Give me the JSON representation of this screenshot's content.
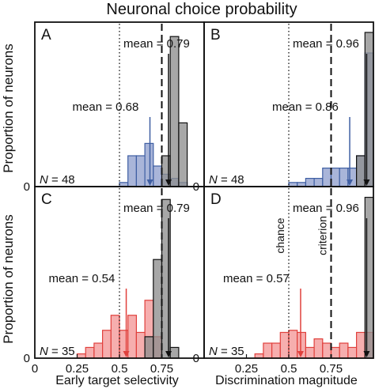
{
  "figure": {
    "title": "Neuronal choice probability",
    "ylabel": "Proportion of neurons",
    "xlabel_left": "Early target selectivity",
    "xlabel_right": "Discrimination magnitude"
  },
  "colors": {
    "blue": "#3f5fa3",
    "blue_fill": "#9aa8d2",
    "red": "#e0403c",
    "red_fill": "#f4a0a0",
    "gray_fill": "#8e8e8e",
    "dark_fill": "#3d4354"
  },
  "chart_data": [
    {
      "panel": "A",
      "type": "bar",
      "xlim": [
        0,
        1
      ],
      "ylim": [
        0,
        0.8
      ],
      "xticks": [],
      "yticks": [
        0
      ],
      "bin_width": 0.05,
      "n_label": "N = 48",
      "ref_lines": {
        "chance": 0.5,
        "criterion": 0.75
      },
      "series": [
        {
          "bin_starts": [
            0.5,
            0.55,
            0.6,
            0.65,
            0.7,
            0.75,
            0.8,
            0.85
          ],
          "values": [
            0.02,
            0.15,
            0.15,
            0.21,
            0.1,
            0.06,
            0.04,
            0.02
          ],
          "mean": 0.68,
          "mean_label": "mean = 0.68",
          "color": "blue"
        },
        {
          "bin_starts": [
            0.75,
            0.8,
            0.85
          ],
          "values": [
            0.15,
            0.73,
            0.31
          ],
          "mean": 0.79,
          "mean_label": "mean = 0.79",
          "color": "gray"
        }
      ]
    },
    {
      "panel": "B",
      "type": "bar",
      "xlim": [
        0,
        1
      ],
      "ylim": [
        0,
        0.8
      ],
      "xticks": [],
      "yticks": [
        0
      ],
      "bin_width": 0.05,
      "n_label": "N = 48",
      "ref_lines": {
        "chance": 0.5,
        "criterion": 0.75
      },
      "series": [
        {
          "bin_starts": [
            0.5,
            0.55,
            0.6,
            0.65,
            0.7,
            0.75,
            0.8,
            0.85,
            0.9,
            0.95
          ],
          "values": [
            0.02,
            0.02,
            0.04,
            0.04,
            0.09,
            0.09,
            0.09,
            0.09,
            0.15,
            0.65
          ],
          "mean": 0.86,
          "mean_label": "mean = 0.86",
          "color": "blue"
        },
        {
          "bin_starts": [
            0.9,
            0.95
          ],
          "values": [
            0.15,
            0.75
          ],
          "mean": 0.96,
          "mean_label": "mean = 0.96",
          "color": "gray"
        }
      ]
    },
    {
      "panel": "C",
      "type": "bar",
      "xlim": [
        0,
        1
      ],
      "ylim": [
        0,
        0.8
      ],
      "xticks": [
        0,
        0.25,
        0.5,
        0.75
      ],
      "xtick_labels": [
        "0",
        "0.25",
        "0.5",
        "0.75"
      ],
      "yticks": [
        0
      ],
      "bin_width": 0.05,
      "n_label": "N = 35",
      "ref_lines": {
        "chance": 0.5,
        "criterion": 0.75
      },
      "series": [
        {
          "bin_starts": [
            0.25,
            0.3,
            0.35,
            0.4,
            0.45,
            0.5,
            0.55,
            0.6,
            0.65,
            0.7
          ],
          "values": [
            0.02,
            0.05,
            0.07,
            0.13,
            0.2,
            0.13,
            0.2,
            0.12,
            0.27,
            0.1
          ],
          "mean": 0.54,
          "mean_label": "mean = 0.54",
          "color": "red"
        },
        {
          "bin_starts": [
            0.65,
            0.7,
            0.75,
            0.8
          ],
          "values": [
            0.1,
            0.46,
            0.74,
            0.05
          ],
          "mean": 0.79,
          "mean_label": "mean = 0.79",
          "color": "gray"
        }
      ]
    },
    {
      "panel": "D",
      "type": "bar",
      "xlim": [
        0,
        1
      ],
      "ylim": [
        0,
        0.8
      ],
      "xticks": [
        0.25,
        0.5,
        0.75
      ],
      "xtick_labels": [
        "0.25",
        "0.5",
        "0.75"
      ],
      "yticks": [
        0
      ],
      "bin_width": 0.05,
      "n_label": "N = 35",
      "ref_lines": {
        "chance": 0.5,
        "criterion": 0.75,
        "chance_label": "chance",
        "criterion_label": "criterion"
      },
      "series": [
        {
          "bin_starts": [
            0.3,
            0.35,
            0.4,
            0.45,
            0.5,
            0.55,
            0.6,
            0.65,
            0.7,
            0.75,
            0.8,
            0.85,
            0.9,
            0.95
          ],
          "values": [
            0.02,
            0.07,
            0.07,
            0.12,
            0.13,
            0.12,
            0.05,
            0.09,
            0.07,
            0.05,
            0.07,
            0.05,
            0.12,
            0.12
          ],
          "mean": 0.57,
          "mean_label": "mean = 0.57",
          "color": "red"
        },
        {
          "bin_starts": [
            0.95
          ],
          "values": [
            0.75
          ],
          "mean": 0.96,
          "mean_label": "mean = 0.96",
          "color": "gray"
        }
      ]
    }
  ]
}
